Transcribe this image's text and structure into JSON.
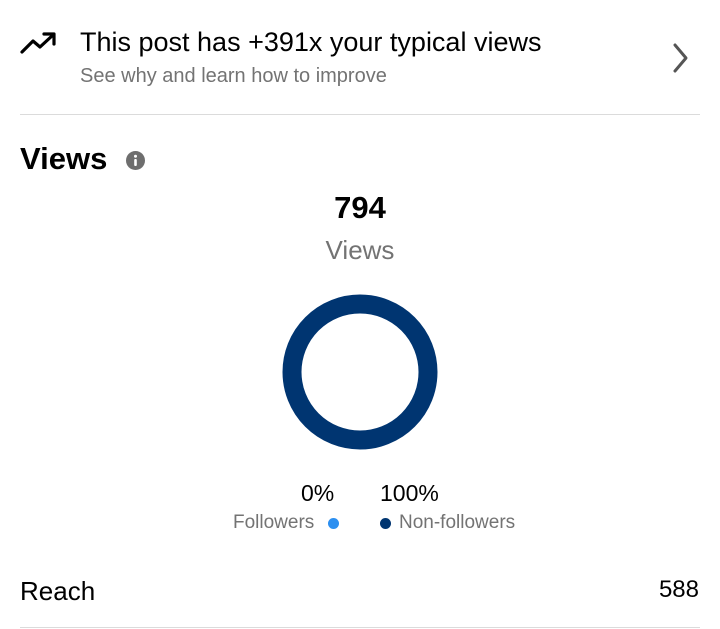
{
  "insight": {
    "title": "This post has +391x your typical views",
    "subtitle": "See why and learn how to improve"
  },
  "icons": {
    "trend": "trending-up-icon",
    "chevron": "chevron-right-icon",
    "info": "info-icon"
  },
  "views": {
    "heading": "Views",
    "total": "794",
    "total_label": "Views"
  },
  "chart_data": {
    "type": "pie",
    "categories": [
      "Followers",
      "Non-followers"
    ],
    "values": [
      0,
      100
    ],
    "colors": [
      "#2c8ff0",
      "#003571"
    ]
  },
  "breakdown": {
    "followers_pct": "0%",
    "followers_label": "Followers",
    "nonfollowers_pct": "100%",
    "nonfollowers_label": "Non-followers"
  },
  "reach": {
    "label": "Reach",
    "value": "588"
  },
  "colors": {
    "followers": "#2c8ff0",
    "nonfollowers": "#003571",
    "secondary_text": "#737373",
    "divider": "#dbdbdb"
  }
}
